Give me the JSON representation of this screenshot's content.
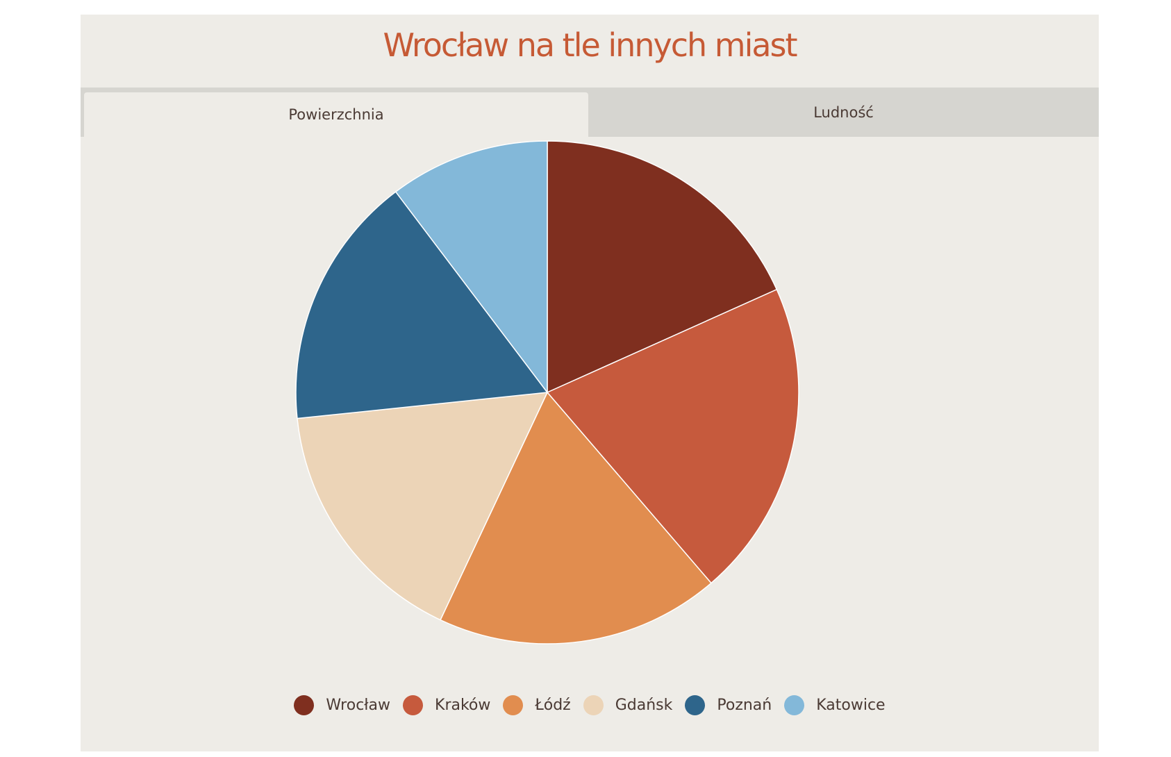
{
  "title": "Wrocław na tle innych miast",
  "tabs": [
    {
      "label": "Powierzchnia",
      "active": true
    },
    {
      "label": "Ludność",
      "active": false
    }
  ],
  "colors": {
    "background": "#eeece7",
    "title": "#c65a35",
    "tab_inactive": "#d6d5d0"
  },
  "chart_data": {
    "type": "pie",
    "title": "",
    "legend_position": "bottom",
    "categories": [
      "Wrocław",
      "Kraków",
      "Łódź",
      "Gdańsk",
      "Poznań",
      "Katowice"
    ],
    "values": [
      293,
      327,
      293,
      262,
      262,
      165
    ],
    "colors": [
      "#7f2f1f",
      "#c65a3d",
      "#e18d4f",
      "#ecd4b7",
      "#2e658b",
      "#83b8d9"
    ]
  }
}
